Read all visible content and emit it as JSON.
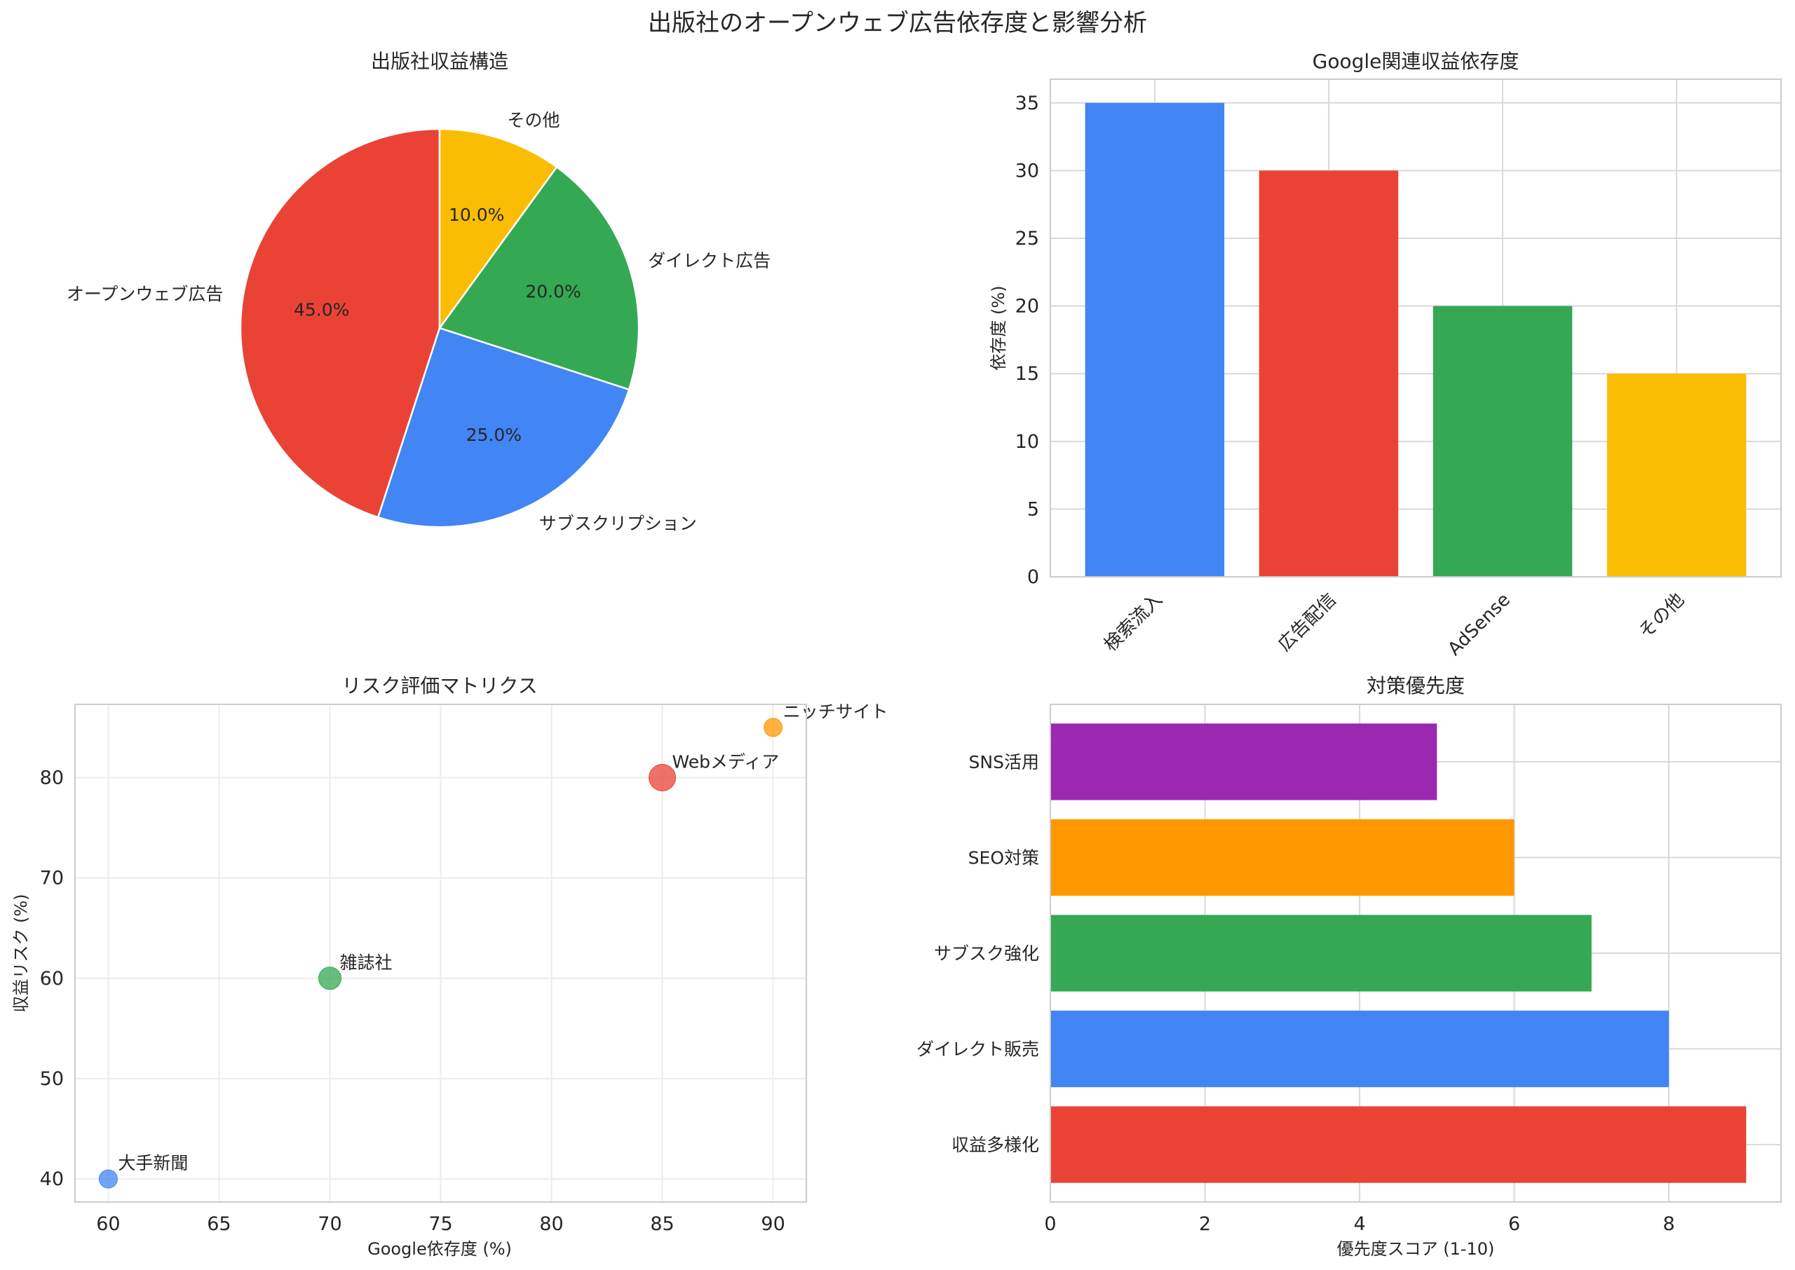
{
  "figure": {
    "title": "出版社のオープンウェブ広告依存度と影響分析"
  },
  "chart_data": [
    {
      "type": "pie",
      "title": "出版社収益構造",
      "labels": [
        "オープンウェブ広告",
        "サブスクリプション",
        "ダイレクト広告",
        "その他"
      ],
      "values": [
        45,
        25,
        20,
        10
      ],
      "pct_labels": [
        "45.0%",
        "25.0%",
        "20.0%",
        "10.0%"
      ],
      "colors": [
        "#ea4335",
        "#4285f4",
        "#34a853",
        "#fbbc04"
      ],
      "start_angle_deg": 90,
      "direction": "counterclockwise"
    },
    {
      "type": "bar",
      "title": "Google関連収益依存度",
      "categories": [
        "検索流入",
        "広告配信",
        "AdSense",
        "その他"
      ],
      "values": [
        35,
        30,
        20,
        15
      ],
      "colors": [
        "#4285f4",
        "#ea4335",
        "#34a853",
        "#fbbc04"
      ],
      "xlabel": "",
      "ylabel": "依存度 (%)",
      "ylim": [
        0,
        36.75
      ],
      "yticks": [
        0,
        5,
        10,
        15,
        20,
        25,
        30,
        35
      ],
      "grid": true
    },
    {
      "type": "scatter",
      "title": "リスク評価マトリクス",
      "xlabel": "Google依存度 (%)",
      "ylabel": "収益リスク (%)",
      "xlim": [
        58.5,
        91.5
      ],
      "ylim": [
        37.7,
        87.3
      ],
      "xticks": [
        60,
        65,
        70,
        75,
        80,
        85,
        90
      ],
      "yticks": [
        40,
        50,
        60,
        70,
        80
      ],
      "grid": true,
      "points": [
        {
          "label": "大手新聞",
          "x": 60,
          "y": 40,
          "size": 1,
          "color": "#4285f4"
        },
        {
          "label": "雑誌社",
          "x": 70,
          "y": 60,
          "size": 2,
          "color": "#34a853"
        },
        {
          "label": "Webメディア",
          "x": 85,
          "y": 80,
          "size": 3,
          "color": "#ea4335"
        },
        {
          "label": "ニッチサイト",
          "x": 90,
          "y": 85,
          "size": 1,
          "color": "#ff9800"
        }
      ]
    },
    {
      "type": "bar",
      "orientation": "horizontal",
      "title": "対策優先度",
      "categories": [
        "収益多様化",
        "ダイレクト販売",
        "サブスク強化",
        "SEO対策",
        "SNS活用"
      ],
      "values": [
        9,
        8,
        7,
        6,
        5
      ],
      "colors": [
        "#ea4335",
        "#4285f4",
        "#34a853",
        "#ff9800",
        "#9c27b0"
      ],
      "xlabel": "優先度スコア (1-10)",
      "ylabel": "",
      "xlim": [
        0,
        9.45
      ],
      "xticks": [
        0,
        2,
        4,
        6,
        8
      ],
      "grid": true
    }
  ]
}
